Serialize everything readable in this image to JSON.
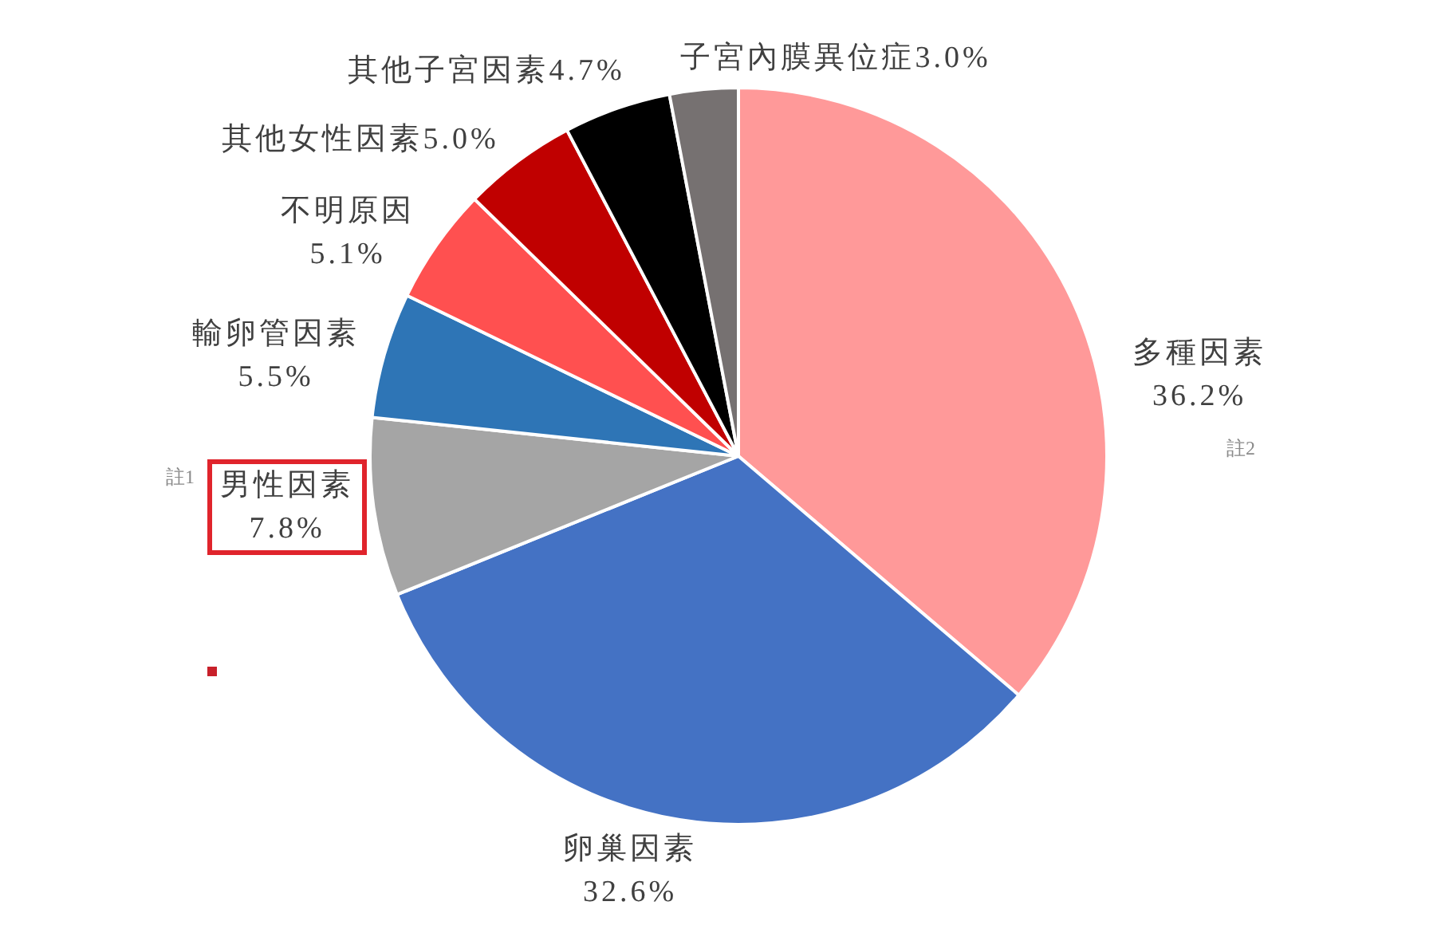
{
  "chart_data": {
    "type": "pie",
    "categories": [
      "多種因素",
      "卵巢因素",
      "男性因素",
      "輸卵管因素",
      "不明原因",
      "其他女性因素",
      "其他子宮因素",
      "子宮內膜異位症"
    ],
    "values": [
      36.2,
      32.6,
      7.8,
      5.5,
      5.1,
      5.0,
      4.7,
      3.0
    ],
    "colors": [
      "#ff9999",
      "#4472c4",
      "#a5a5a5",
      "#2e75b6",
      "#ff5050",
      "#c00000",
      "#000000",
      "#767171"
    ],
    "value_labels": [
      "36.2%",
      "32.6%",
      "7.8%",
      "5.5%",
      "5.1%",
      "5.0%",
      "4.7%",
      "3.0%"
    ],
    "annotations": [
      "註1",
      "註2"
    ],
    "legend": false
  }
}
